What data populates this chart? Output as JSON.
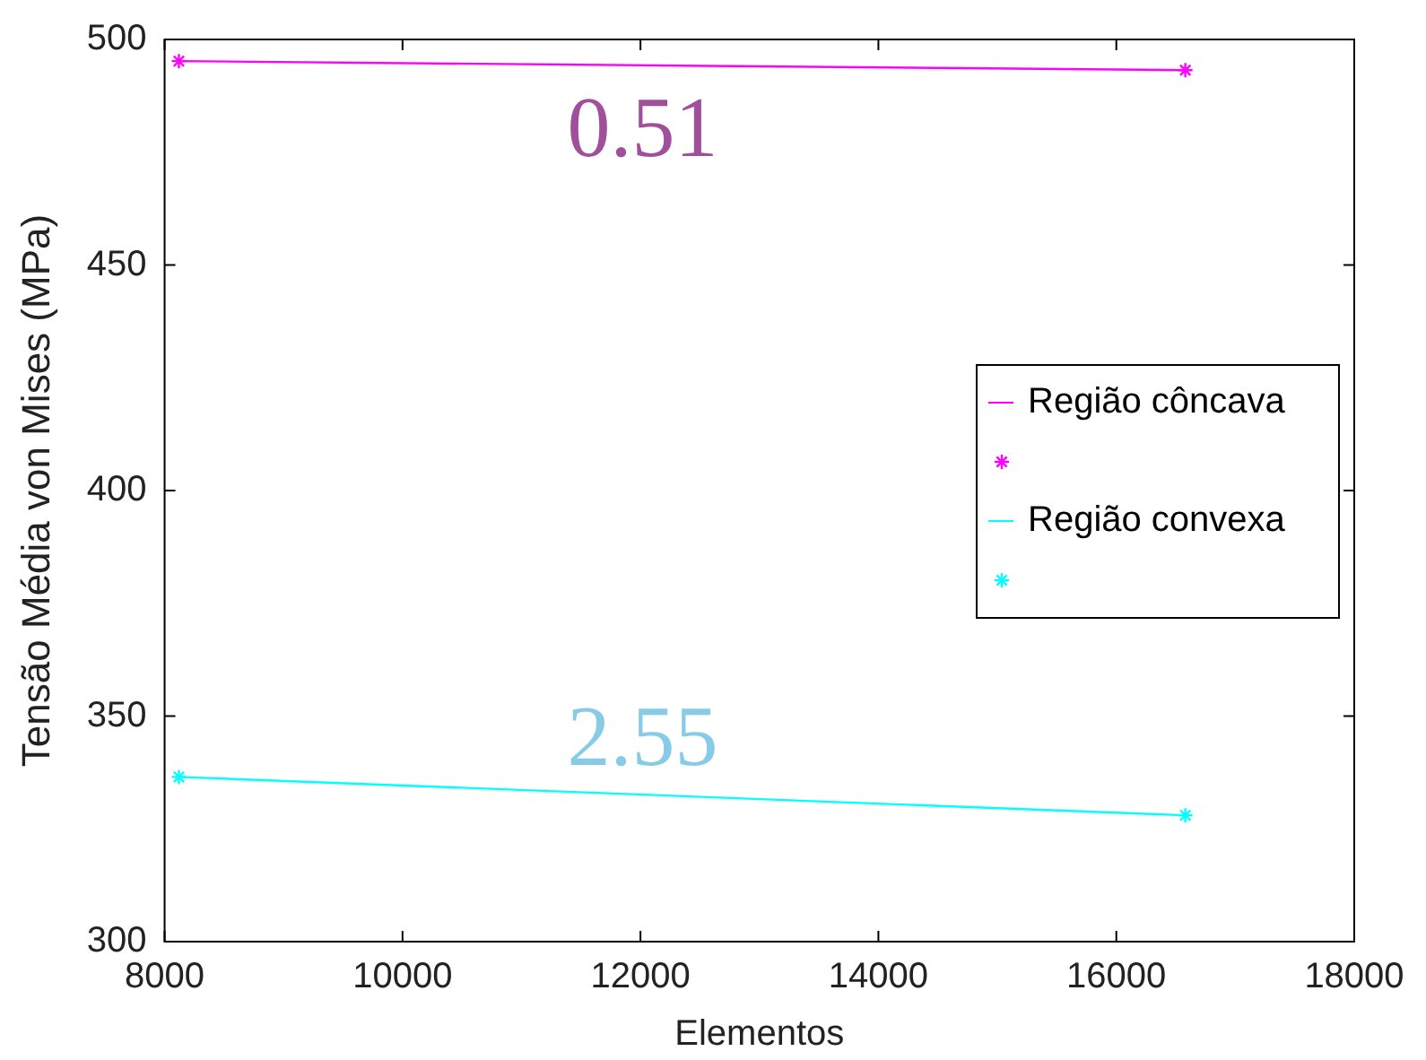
{
  "chart_data": {
    "type": "line",
    "xlabel": "Elementos",
    "ylabel": "Tensão Média von Mises (MPa)",
    "xlim": [
      8000,
      18000
    ],
    "xticks": [
      8000,
      10000,
      12000,
      14000,
      16000,
      18000
    ],
    "ylim": [
      300,
      500
    ],
    "yticks": [
      300,
      350,
      400,
      450,
      500
    ],
    "x": [
      8120,
      16580
    ],
    "series": [
      {
        "name": "Região côncava",
        "color": "#ff00ff",
        "values": [
          495.2,
          493.2
        ]
      },
      {
        "name": "Região convexa",
        "color": "#00ffff",
        "values": [
          336.5,
          328.0
        ]
      }
    ],
    "marker": "cross",
    "line_style": "solid",
    "grid": false,
    "legend": "right",
    "annotations": [
      "0.51",
      "2.55"
    ]
  }
}
